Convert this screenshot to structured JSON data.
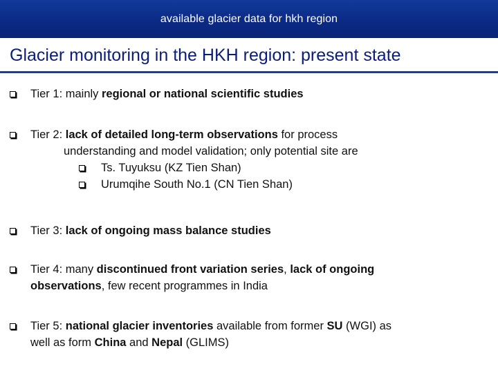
{
  "header": {
    "title": "available glacier data for hkh region"
  },
  "slide": {
    "heading": "Glacier monitoring in the HKH region: present state",
    "tier1": {
      "a": "Tier 1: mainly ",
      "b": "regional or national scientific studies"
    },
    "tier2": {
      "a": "Tier 2: ",
      "b": "lack of detailed long-term observations",
      "c": " for process",
      "line2": "understanding and model validation; only potential site are",
      "sub": [
        "Ts. Tuyuksu (KZ Tien Shan)",
        "Urumqihe South No.1 (CN Tien Shan)"
      ]
    },
    "tier3": {
      "a": "Tier 3: ",
      "b": "lack of ongoing mass balance studies"
    },
    "tier4": {
      "a": "Tier 4: many ",
      "b": "discontinued front variation series",
      "c": ", ",
      "d": "lack of ongoing",
      "e": "observations",
      "f": ", few recent programmes in India"
    },
    "tier5": {
      "a": "Tier 5: ",
      "b": "national glacier inventories",
      "c": " available from former ",
      "d": "SU",
      "e": " (WGI) as",
      "f": "well as form ",
      "g": "China",
      "h": " and ",
      "i": "Nepal",
      "j": " (GLIMS)"
    }
  }
}
